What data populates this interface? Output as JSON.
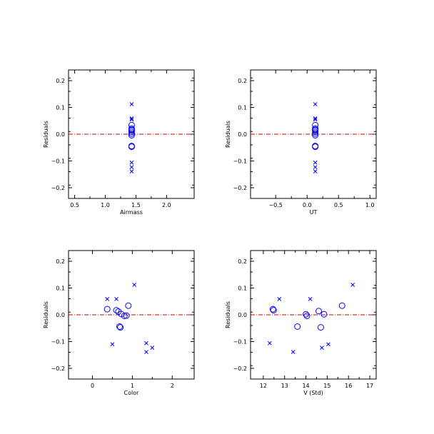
{
  "colors": {
    "axis": "#000000",
    "points": "#0000ff",
    "zero_line": "#cc0000"
  },
  "chart_data": [
    {
      "type": "scatter",
      "xlabel": "Airmass",
      "ylabel": "Residuals",
      "xlim": [
        0.4,
        2.45
      ],
      "ylim": [
        -0.24,
        0.24
      ],
      "xticks": [
        0.5,
        1.0,
        1.5,
        2.0
      ],
      "xtick_labels": [
        "0.5",
        "1.0",
        "1.5",
        "2.0"
      ],
      "yticks": [
        -0.2,
        -0.1,
        0.0,
        0.1,
        0.2
      ],
      "ytick_labels": [
        "−0.2",
        "−0.1",
        "0.0",
        "0.1",
        "0.2"
      ],
      "reference_line_y": 0,
      "series": [
        {
          "marker": "circle",
          "x": [
            1.43,
            1.43,
            1.43,
            1.43,
            1.43,
            1.43,
            1.43,
            1.43,
            1.43
          ],
          "y": [
            0.034,
            0.021,
            0.017,
            0.008,
            0.002,
            -0.004,
            -0.044,
            -0.047,
            0.014
          ]
        },
        {
          "marker": "x",
          "x": [
            1.43,
            1.43,
            1.43,
            1.43,
            1.43,
            1.43
          ],
          "y": [
            0.112,
            0.059,
            0.055,
            -0.106,
            -0.123,
            -0.139
          ]
        }
      ]
    },
    {
      "type": "scatter",
      "xlabel": "UT",
      "ylabel": "Residuals",
      "xlim": [
        -0.9,
        1.1
      ],
      "ylim": [
        -0.24,
        0.24
      ],
      "xticks": [
        -0.5,
        0.0,
        0.5,
        1.0
      ],
      "xtick_labels": [
        "−0.5",
        "0.0",
        "0.5",
        "1.0"
      ],
      "yticks": [
        -0.2,
        -0.1,
        0.0,
        0.1,
        0.2
      ],
      "ytick_labels": [
        "−0.2",
        "−0.1",
        "0.0",
        "0.1",
        "0.2"
      ],
      "reference_line_y": 0,
      "series": [
        {
          "marker": "circle",
          "x": [
            0.13,
            0.13,
            0.13,
            0.13,
            0.13,
            0.13,
            0.13,
            0.13,
            0.13
          ],
          "y": [
            0.034,
            0.021,
            0.017,
            0.008,
            0.002,
            -0.004,
            -0.044,
            -0.047,
            0.014
          ]
        },
        {
          "marker": "x",
          "x": [
            0.13,
            0.13,
            0.13,
            0.13,
            0.13,
            0.13
          ],
          "y": [
            0.112,
            0.059,
            0.055,
            -0.106,
            -0.123,
            -0.139
          ]
        }
      ]
    },
    {
      "type": "scatter",
      "xlabel": "Color",
      "ylabel": "Residuals",
      "xlim": [
        -0.6,
        2.55
      ],
      "ylim": [
        -0.24,
        0.24
      ],
      "xticks": [
        0,
        1,
        2
      ],
      "xtick_labels": [
        "0",
        "1",
        "2"
      ],
      "yticks": [
        -0.2,
        -0.1,
        0.0,
        0.1,
        0.2
      ],
      "ytick_labels": [
        "−0.2",
        "−0.1",
        "0.0",
        "0.1",
        "0.2"
      ],
      "reference_line_y": 0,
      "series": [
        {
          "marker": "circle",
          "x": [
            0.9,
            0.37,
            0.6,
            0.65,
            0.72,
            0.8,
            0.85,
            0.68,
            0.7
          ],
          "y": [
            0.034,
            0.021,
            0.017,
            0.012,
            0.003,
            -0.004,
            -0.003,
            -0.044,
            -0.047
          ]
        },
        {
          "marker": "x",
          "x": [
            1.05,
            0.37,
            0.6,
            0.5,
            1.35,
            1.35,
            1.5
          ],
          "y": [
            0.112,
            0.059,
            0.059,
            -0.11,
            -0.106,
            -0.139,
            -0.123
          ]
        }
      ]
    },
    {
      "type": "scatter",
      "xlabel": "V (Std)",
      "ylabel": "Residuals",
      "xlim": [
        11.4,
        17.3
      ],
      "ylim": [
        -0.24,
        0.24
      ],
      "xticks": [
        12,
        13,
        14,
        15,
        16,
        17
      ],
      "xtick_labels": [
        "12",
        "13",
        "14",
        "15",
        "16",
        "17"
      ],
      "yticks": [
        -0.2,
        -0.1,
        0.0,
        0.1,
        0.2
      ],
      "ytick_labels": [
        "−0.2",
        "−0.1",
        "0.0",
        "0.1",
        "0.2"
      ],
      "reference_line_y": 0,
      "series": [
        {
          "marker": "circle",
          "x": [
            15.7,
            12.45,
            12.48,
            14.6,
            14.0,
            14.05,
            14.85,
            13.6,
            14.7
          ],
          "y": [
            0.034,
            0.021,
            0.017,
            0.014,
            0.002,
            -0.004,
            0.002,
            -0.044,
            -0.047
          ]
        },
        {
          "marker": "x",
          "x": [
            16.2,
            12.75,
            14.2,
            12.3,
            13.4,
            14.75,
            15.05
          ],
          "y": [
            0.112,
            0.059,
            0.059,
            -0.106,
            -0.139,
            -0.123,
            -0.11
          ]
        }
      ]
    }
  ]
}
